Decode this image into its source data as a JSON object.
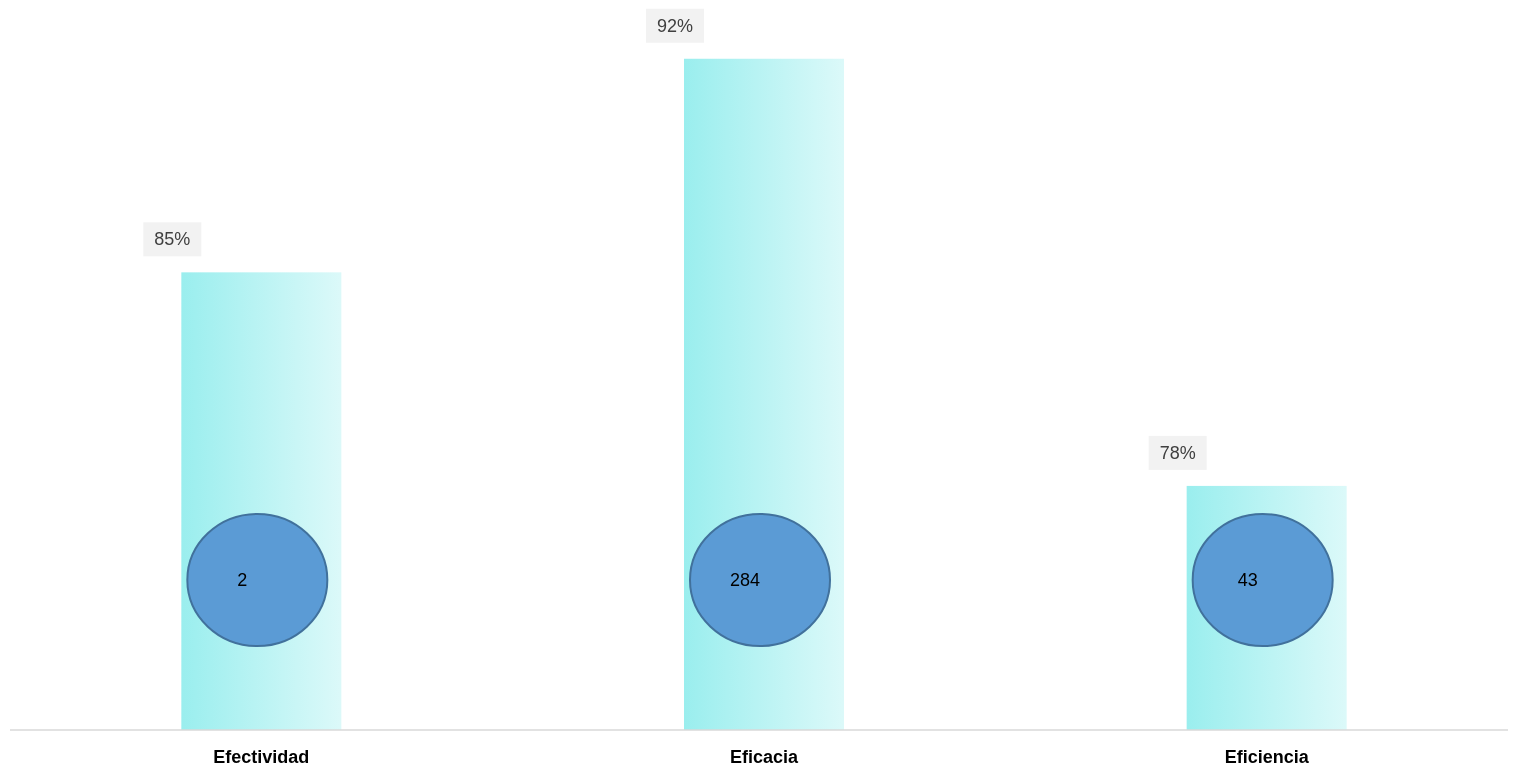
{
  "chart_data": {
    "type": "bar",
    "categories": [
      "Efectividad",
      "Eficacia",
      "Eficiencia"
    ],
    "ylim": [
      70,
      93.5
    ],
    "series": [
      {
        "color": "#9aeeee",
        "values": [
          85,
          92,
          78
        ],
        "value_labels": [
          "85%",
          "92%",
          "78%"
        ]
      }
    ],
    "annotations": [
      "2",
      "284",
      "43"
    ]
  }
}
